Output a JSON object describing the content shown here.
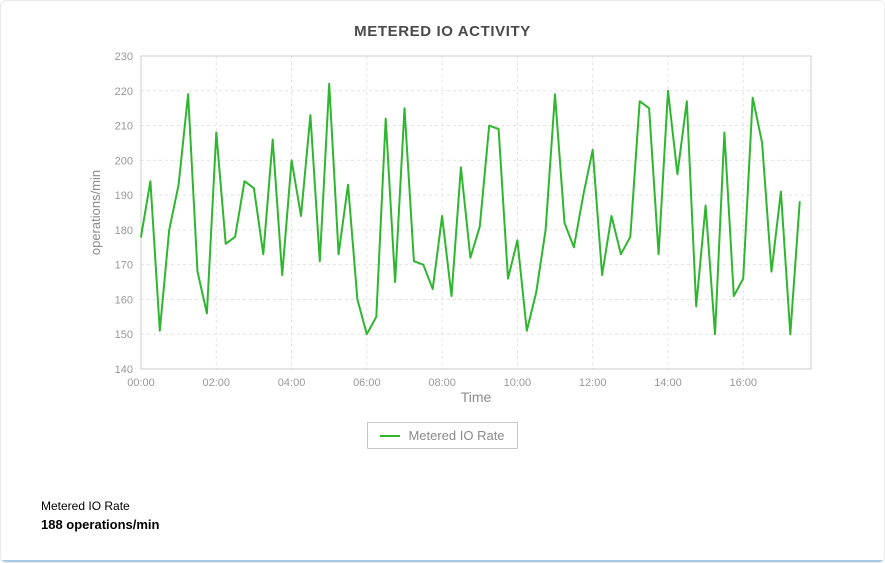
{
  "widget": {
    "title": "METERED IO ACTIVITY"
  },
  "chart_data": {
    "type": "line",
    "title": "METERED IO ACTIVITY",
    "xlabel": "Time",
    "ylabel": "operations/min",
    "ylim": [
      140,
      230
    ],
    "y_ticks": [
      140,
      150,
      160,
      170,
      180,
      190,
      200,
      210,
      220,
      230
    ],
    "x_tick_labels": [
      "00:00",
      "02:00",
      "04:00",
      "06:00",
      "08:00",
      "10:00",
      "12:00",
      "14:00",
      "16:00"
    ],
    "x_tick_minutes": [
      0,
      120,
      240,
      360,
      480,
      600,
      720,
      840,
      960
    ],
    "x_domain_minutes": [
      0,
      1068
    ],
    "x_interval_minutes": 15,
    "grid": true,
    "legend_position": "bottom",
    "series": [
      {
        "name": "Metered IO Rate",
        "color": "#2fb62f",
        "start_minutes": 0,
        "values": [
          178,
          194,
          151,
          180,
          193,
          219,
          168,
          156,
          208,
          176,
          178,
          194,
          192,
          173,
          206,
          167,
          200,
          184,
          213,
          171,
          222,
          173,
          193,
          160,
          150,
          155,
          212,
          165,
          215,
          171,
          170,
          163,
          184,
          161,
          198,
          172,
          181,
          210,
          209,
          166,
          177,
          151,
          162,
          180,
          219,
          182,
          175,
          190,
          203,
          167,
          184,
          173,
          178,
          217,
          215,
          173,
          220,
          196,
          217,
          158,
          187,
          150,
          208,
          161,
          166,
          218,
          205,
          168,
          191,
          150,
          188
        ]
      }
    ]
  },
  "legend": {
    "label": "Metered IO Rate"
  },
  "readout": {
    "series_label": "Metered IO Rate",
    "value_text": "188 operations/min"
  },
  "colors": {
    "line": "#2fb62f",
    "grid": "#e3e3e3",
    "plot_border": "#cccccc",
    "title": "#4a4a4a",
    "axis_text": "#999999",
    "axis_title": "#8b8b8b",
    "legend_border": "#c9c9c9",
    "bottom_divider": "#a9c7e2"
  }
}
